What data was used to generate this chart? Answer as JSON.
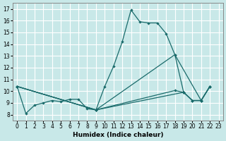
{
  "xlabel": "Humidex (Indice chaleur)",
  "xlim": [
    -0.5,
    23.5
  ],
  "ylim": [
    7.5,
    17.5
  ],
  "yticks": [
    8,
    9,
    10,
    11,
    12,
    13,
    14,
    15,
    16,
    17
  ],
  "xticks": [
    0,
    1,
    2,
    3,
    4,
    5,
    6,
    7,
    8,
    9,
    10,
    11,
    12,
    13,
    14,
    15,
    16,
    17,
    18,
    19,
    20,
    21,
    22,
    23
  ],
  "xtick_labels": [
    "0",
    "1",
    "2",
    "3",
    "4",
    "5",
    "6",
    "7",
    "8",
    "9",
    "10",
    "11",
    "12",
    "13",
    "14",
    "15",
    "16",
    "17",
    "18",
    "19",
    "20",
    "21",
    "22",
    "23"
  ],
  "background_color": "#c8e8e8",
  "grid_color": "#ffffff",
  "line_color": "#1a6b6b",
  "curve1_x": [
    0,
    1,
    2,
    3,
    4,
    5,
    6,
    7,
    8,
    9,
    10,
    11,
    12,
    13,
    14,
    15,
    16,
    17,
    18,
    19,
    20,
    21,
    22
  ],
  "curve1_y": [
    10.4,
    8.1,
    8.8,
    9.0,
    9.2,
    9.1,
    9.3,
    9.3,
    8.5,
    8.4,
    10.4,
    12.1,
    14.2,
    16.9,
    15.9,
    15.8,
    15.8,
    14.9,
    13.1,
    9.9,
    9.2,
    9.2,
    10.4
  ],
  "curve2_x": [
    0,
    9,
    18,
    21,
    22
  ],
  "curve2_y": [
    10.4,
    8.4,
    13.1,
    9.2,
    10.4
  ],
  "curve3_x": [
    0,
    9,
    18,
    19,
    20,
    21,
    22
  ],
  "curve3_y": [
    10.4,
    8.4,
    10.05,
    9.9,
    9.2,
    9.2,
    10.4
  ],
  "curve4_x": [
    0,
    9,
    19,
    20,
    21,
    22
  ],
  "curve4_y": [
    10.4,
    8.4,
    9.9,
    9.2,
    9.2,
    10.4
  ]
}
